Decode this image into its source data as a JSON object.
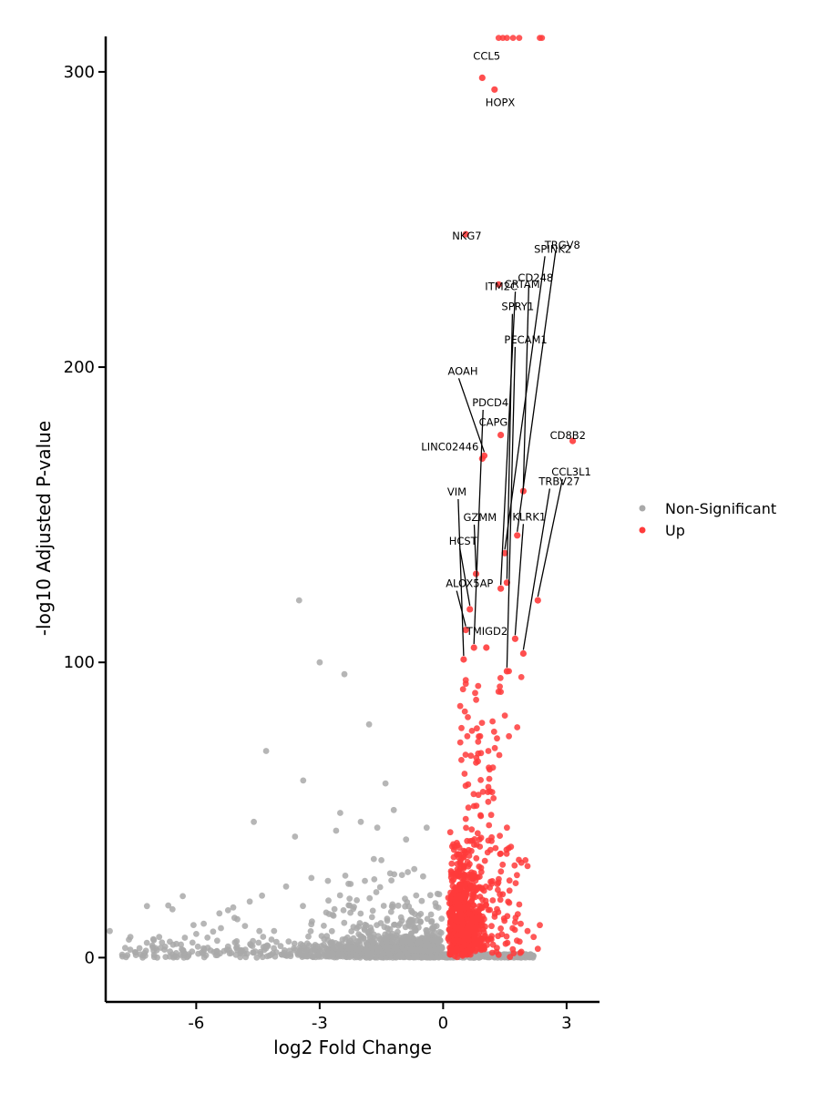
{
  "chart_data": {
    "type": "scatter",
    "title": "",
    "xlabel": "log2 Fold Change",
    "ylabel": "-log10 Adjusted P-value",
    "xlim": [
      -8.2,
      3.8
    ],
    "ylim": [
      -15,
      312
    ],
    "xticks": [
      -6,
      -3,
      0,
      3
    ],
    "yticks": [
      0,
      100,
      200,
      300
    ],
    "grid": false,
    "legend_position": "right",
    "series": [
      {
        "name": "Non-Significant",
        "color": "#a9a9a9"
      },
      {
        "name": "Up",
        "color": "#ff3b3b"
      }
    ],
    "labeled_genes": [
      {
        "gene": "CCL5",
        "x": 0.95,
        "y": 298
      },
      {
        "gene": "HOPX",
        "x": 1.25,
        "y": 294
      },
      {
        "gene": "NKG7",
        "x": 0.55,
        "y": 245
      },
      {
        "gene": "ITM2C",
        "x": 1.35,
        "y": 228
      },
      {
        "gene": "SPINK2",
        "x": 1.5,
        "y": 137
      },
      {
        "gene": "CRTAM",
        "x": 1.4,
        "y": 125
      },
      {
        "gene": "TRGV8",
        "x": 1.8,
        "y": 143
      },
      {
        "gene": "SPRY1",
        "x": 1.55,
        "y": 127
      },
      {
        "gene": "AOAH",
        "x": 1.0,
        "y": 170
      },
      {
        "gene": "CD248",
        "x": 1.95,
        "y": 158
      },
      {
        "gene": "CAPG",
        "x": 1.4,
        "y": 177
      },
      {
        "gene": "PECAM1",
        "x": 1.55,
        "y": 97
      },
      {
        "gene": "CD8B2",
        "x": 3.15,
        "y": 175
      },
      {
        "gene": "LINC02446",
        "x": 0.95,
        "y": 169
      },
      {
        "gene": "PDCD4",
        "x": 0.75,
        "y": 105
      },
      {
        "gene": "CCL3L1",
        "x": 2.3,
        "y": 121
      },
      {
        "gene": "TRBV27",
        "x": 1.95,
        "y": 103
      },
      {
        "gene": "VIM",
        "x": 0.5,
        "y": 101
      },
      {
        "gene": "KLRK1",
        "x": 1.75,
        "y": 108
      },
      {
        "gene": "GZMM",
        "x": 0.8,
        "y": 130
      },
      {
        "gene": "HCST",
        "x": 0.65,
        "y": 118
      },
      {
        "gene": "ALOX5AP",
        "x": 0.55,
        "y": 111
      },
      {
        "gene": "TMIGD2",
        "x": 1.05,
        "y": 105
      }
    ]
  }
}
